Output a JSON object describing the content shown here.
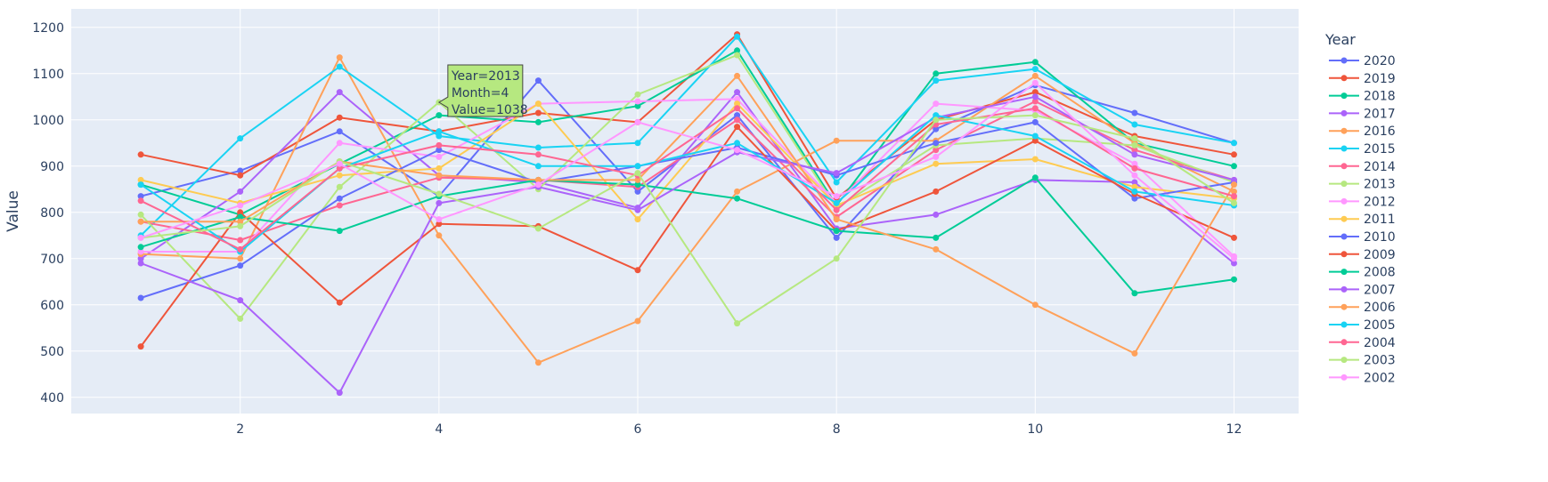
{
  "chart_data": {
    "type": "line",
    "xlabel": "",
    "ylabel": "Value",
    "xlim": [
      0.3,
      12.65
    ],
    "ylim": [
      365,
      1240
    ],
    "x_ticks": [
      2,
      4,
      6,
      8,
      10,
      12
    ],
    "y_ticks": [
      400,
      500,
      600,
      700,
      800,
      900,
      1000,
      1100,
      1200
    ],
    "grid": true,
    "plot_bgcolor": "#E5ECF6",
    "gridcolor": "#ffffff",
    "legend": {
      "title": "Year",
      "placement": "right"
    },
    "x": [
      1,
      2,
      3,
      4,
      5,
      6,
      7,
      8,
      9,
      10,
      11,
      12
    ],
    "series": [
      {
        "name": "2020",
        "color": "#636EFA",
        "values": [
          835,
          890,
          975,
          835,
          1085,
          845,
          1010,
          745,
          980,
          1075,
          1015,
          950
        ]
      },
      {
        "name": "2019",
        "color": "#EF553B",
        "values": [
          925,
          880,
          1005,
          975,
          1015,
          995,
          1185,
          830,
          1000,
          1060,
          965,
          925
        ]
      },
      {
        "name": "2018",
        "color": "#00CC96",
        "values": [
          860,
          795,
          905,
          1010,
          995,
          1030,
          1150,
          815,
          1100,
          1125,
          950,
          900
        ]
      },
      {
        "name": "2017",
        "color": "#AB63FA",
        "values": [
          700,
          845,
          1060,
          880,
          865,
          810,
          1060,
          765,
          795,
          870,
          865,
          690
        ]
      },
      {
        "name": "2016",
        "color": "#FFA15A",
        "values": [
          710,
          700,
          1135,
          750,
          475,
          565,
          845,
          955,
          955,
          1095,
          950,
          845
        ]
      },
      {
        "name": "2015",
        "color": "#19D3F3",
        "values": [
          750,
          960,
          1115,
          965,
          940,
          950,
          1180,
          865,
          1085,
          1110,
          990,
          950
        ]
      },
      {
        "name": "2014",
        "color": "#FF6692",
        "values": [
          780,
          740,
          815,
          875,
          870,
          855,
          1000,
          790,
          935,
          1040,
          935,
          870
        ]
      },
      {
        "name": "2013",
        "color": "#B6E880",
        "values": [
          795,
          570,
          855,
          1038,
          850,
          1055,
          1140,
          810,
          945,
          960,
          945,
          865
        ]
      },
      {
        "name": "2012",
        "color": "#FF97FF",
        "values": [
          715,
          715,
          950,
          920,
          1035,
          1040,
          1045,
          820,
          1035,
          1020,
          905,
          705
        ]
      },
      {
        "name": "2011",
        "color": "#FECB52",
        "values": [
          870,
          820,
          880,
          895,
          1035,
          785,
          1035,
          815,
          905,
          915,
          855,
          830
        ]
      },
      {
        "name": "2010",
        "color": "#636EFA",
        "values": [
          615,
          685,
          830,
          935,
          865,
          900,
          940,
          880,
          950,
          995,
          830,
          865
        ]
      },
      {
        "name": "2009",
        "color": "#EF553B",
        "values": [
          510,
          800,
          605,
          775,
          770,
          675,
          985,
          760,
          845,
          955,
          840,
          745
        ]
      },
      {
        "name": "2008",
        "color": "#00CC96",
        "values": [
          725,
          790,
          760,
          835,
          870,
          860,
          830,
          760,
          745,
          875,
          625,
          655
        ]
      },
      {
        "name": "2007",
        "color": "#AB63FA",
        "values": [
          690,
          610,
          410,
          820,
          855,
          805,
          930,
          885,
          1005,
          1050,
          925,
          870
        ]
      },
      {
        "name": "2006",
        "color": "#FFA15A",
        "values": [
          780,
          780,
          910,
          880,
          870,
          870,
          1095,
          785,
          720,
          600,
          495,
          860
        ]
      },
      {
        "name": "2005",
        "color": "#19D3F3",
        "values": [
          860,
          715,
          895,
          975,
          900,
          900,
          950,
          820,
          1010,
          965,
          845,
          815
        ]
      },
      {
        "name": "2004",
        "color": "#FF6692",
        "values": [
          825,
          720,
          895,
          945,
          925,
          880,
          1025,
          805,
          990,
          1025,
          895,
          835
        ]
      },
      {
        "name": "2003",
        "color": "#B6E880",
        "values": [
          745,
          770,
          910,
          840,
          765,
          885,
          560,
          700,
          1000,
          1010,
          960,
          820
        ]
      },
      {
        "name": "2002",
        "color": "#FF97FF",
        "values": [
          745,
          815,
          905,
          785,
          860,
          995,
          935,
          835,
          920,
          1080,
          880,
          700
        ]
      }
    ],
    "hover": {
      "series_index": 7,
      "point_index": 3,
      "lines": [
        "Year=2013",
        "Month=4",
        "Value=1038"
      ]
    }
  }
}
